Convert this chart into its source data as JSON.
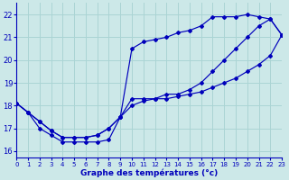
{
  "xlabel": "Graphe des températures (°c)",
  "background_color": "#cce8e8",
  "grid_color": "#aad4d4",
  "line_color": "#0000bb",
  "xlim": [
    0,
    23
  ],
  "ylim": [
    15.7,
    22.5
  ],
  "yticks": [
    16,
    17,
    18,
    19,
    20,
    21,
    22
  ],
  "xticks": [
    0,
    1,
    2,
    3,
    4,
    5,
    6,
    7,
    8,
    9,
    10,
    11,
    12,
    13,
    14,
    15,
    16,
    17,
    18,
    19,
    20,
    21,
    22,
    23
  ],
  "curve_diag_x": [
    0,
    1,
    2,
    3,
    4,
    5,
    6,
    7,
    8,
    9,
    10,
    11,
    12,
    13,
    14,
    15,
    16,
    17,
    18,
    19,
    20,
    21,
    22,
    23
  ],
  "curve_diag_y": [
    18.1,
    17.7,
    17.3,
    16.9,
    16.6,
    16.6,
    16.6,
    16.7,
    17.0,
    17.5,
    18.0,
    18.2,
    18.3,
    18.5,
    18.5,
    18.7,
    19.0,
    19.5,
    20.0,
    20.5,
    21.0,
    21.5,
    21.8,
    21.1
  ],
  "curve_upper_x": [
    0,
    1,
    2,
    3,
    4,
    5,
    6,
    7,
    8,
    9,
    10,
    11,
    12,
    13,
    14,
    15,
    16,
    17,
    18,
    19,
    20,
    21,
    22,
    23
  ],
  "curve_upper_y": [
    18.1,
    17.7,
    17.3,
    16.9,
    16.6,
    16.6,
    16.6,
    16.7,
    17.0,
    17.5,
    20.5,
    20.8,
    20.9,
    21.0,
    21.2,
    21.3,
    21.5,
    21.9,
    21.9,
    21.9,
    22.0,
    21.9,
    21.8,
    21.1
  ],
  "curve_dip_x": [
    0,
    1,
    2,
    3,
    4,
    5,
    6,
    7,
    8,
    9,
    10,
    11,
    12,
    13,
    14,
    15,
    16,
    17,
    18,
    19,
    20,
    21,
    22,
    23
  ],
  "curve_dip_y": [
    18.1,
    17.7,
    17.0,
    16.7,
    16.4,
    16.4,
    16.4,
    16.4,
    16.5,
    17.5,
    18.3,
    18.3,
    18.3,
    18.3,
    18.4,
    18.5,
    18.6,
    18.8,
    19.0,
    19.2,
    19.5,
    19.8,
    20.2,
    21.1
  ]
}
